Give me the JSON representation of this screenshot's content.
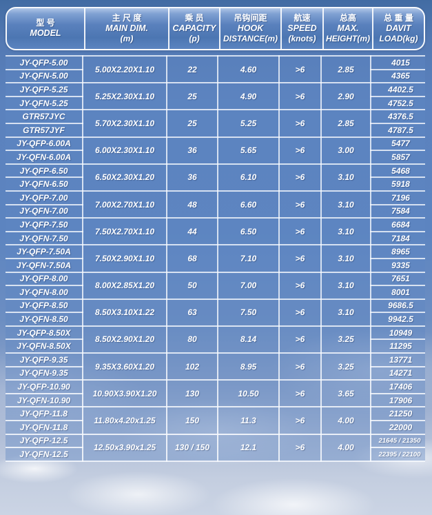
{
  "header": {
    "columns": [
      {
        "zh": "型 号",
        "en": "MODEL",
        "unit": ""
      },
      {
        "zh": "主 尺 度",
        "en": "MAIN DIM.",
        "unit": "(m)"
      },
      {
        "zh": "乘 员",
        "en": "CAPACITY",
        "unit": "(p)"
      },
      {
        "zh": "吊钩间距",
        "en": "HOOK",
        "unit": "DISTANCE(m)"
      },
      {
        "zh": "航速",
        "en": "SPEED",
        "unit": "(knots)"
      },
      {
        "zh": "总高",
        "en": "MAX.",
        "unit": "HEIGHT(m)"
      },
      {
        "zh": "总 重 量",
        "en": "DAVIT",
        "unit": "LOAD(kg)"
      }
    ]
  },
  "groups": [
    {
      "models": [
        "JY-QFP-5.00",
        "JY-QFN-5.00"
      ],
      "dim": "5.00X2.20X1.10",
      "capacity": "22",
      "hook": "4.60",
      "speed": ">6",
      "height": "2.85",
      "loads": [
        "4015",
        "4365"
      ]
    },
    {
      "models": [
        "JY-QFP-5.25",
        "JY-QFN-5.25"
      ],
      "dim": "5.25X2.30X1.10",
      "capacity": "25",
      "hook": "4.90",
      "speed": ">6",
      "height": "2.90",
      "loads": [
        "4402.5",
        "4752.5"
      ]
    },
    {
      "models": [
        "GTR57JYC",
        "GTR57JYF"
      ],
      "dim": "5.70X2.30X1.10",
      "capacity": "25",
      "hook": "5.25",
      "speed": ">6",
      "height": "2.85",
      "loads": [
        "4376.5",
        "4787.5"
      ]
    },
    {
      "models": [
        "JY-QFP-6.00A",
        "JY-QFN-6.00A"
      ],
      "dim": "6.00X2.30X1.10",
      "capacity": "36",
      "hook": "5.65",
      "speed": ">6",
      "height": "3.00",
      "loads": [
        "5477",
        "5857"
      ]
    },
    {
      "models": [
        "JY-QFP-6.50",
        "JY-QFN-6.50"
      ],
      "dim": "6.50X2.30X1.20",
      "capacity": "36",
      "hook": "6.10",
      "speed": ">6",
      "height": "3.10",
      "loads": [
        "5468",
        "5918"
      ]
    },
    {
      "models": [
        "JY-QFP-7.00",
        "JY-QFN-7.00"
      ],
      "dim": "7.00X2.70X1.10",
      "capacity": "48",
      "hook": "6.60",
      "speed": ">6",
      "height": "3.10",
      "loads": [
        "7196",
        "7584"
      ]
    },
    {
      "models": [
        "JY-QFP-7.50",
        "JY-QFN-7.50"
      ],
      "dim": "7.50X2.70X1.10",
      "capacity": "44",
      "hook": "6.50",
      "speed": ">6",
      "height": "3.10",
      "loads": [
        "6684",
        "7184"
      ]
    },
    {
      "models": [
        "JY-QFP-7.50A",
        "JY-QFN-7.50A"
      ],
      "dim": "7.50X2.90X1.10",
      "capacity": "68",
      "hook": "7.10",
      "speed": ">6",
      "height": "3.10",
      "loads": [
        "8965",
        "9335"
      ]
    },
    {
      "models": [
        "JY-QFP-8.00",
        "JY-QFN-8.00"
      ],
      "dim": "8.00X2.85X1.20",
      "capacity": "50",
      "hook": "7.00",
      "speed": ">6",
      "height": "3.10",
      "loads": [
        "7651",
        "8001"
      ]
    },
    {
      "models": [
        "JY-QFP-8.50",
        "JY-QFN-8.50"
      ],
      "dim": "8.50X3.10X1.22",
      "capacity": "63",
      "hook": "7.50",
      "speed": ">6",
      "height": "3.10",
      "loads": [
        "9686.5",
        "9942.5"
      ]
    },
    {
      "models": [
        "JY-QFP-8.50X",
        "JY-QFN-8.50X"
      ],
      "dim": "8.50X2.90X1.20",
      "capacity": "80",
      "hook": "8.14",
      "speed": ">6",
      "height": "3.25",
      "loads": [
        "10949",
        "11295"
      ]
    },
    {
      "models": [
        "JY-QFP-9.35",
        "JY-QFN-9.35"
      ],
      "dim": "9.35X3.60X1.20",
      "capacity": "102",
      "hook": "8.95",
      "speed": ">6",
      "height": "3.25",
      "loads": [
        "13771",
        "14271"
      ]
    },
    {
      "models": [
        "JY-QFP-10.90",
        "JY-QFN-10.90"
      ],
      "dim": "10.90X3.90X1.20",
      "capacity": "130",
      "hook": "10.50",
      "speed": ">6",
      "height": "3.65",
      "loads": [
        "17406",
        "17906"
      ]
    },
    {
      "models": [
        "JY-QFP-11.8",
        "JY-QFN-11.8"
      ],
      "dim": "11.80x4.20x1.25",
      "capacity": "150",
      "hook": "11.3",
      "speed": ">6",
      "height": "4.00",
      "loads": [
        "21250",
        "22000"
      ]
    },
    {
      "models": [
        "JY-QFP-12.5",
        "JY-QFN-12.5"
      ],
      "dim": "12.50x3.90x1.25",
      "capacity": "130 / 150",
      "hook": "12.1",
      "speed": ">6",
      "height": "4.00",
      "loads": [
        "21645 / 21350",
        "22395 / 22100"
      ]
    }
  ],
  "colors": {
    "cell_blue": "#5B82BF",
    "header_top": "#AFC6E6",
    "header_bottom": "#4C76B2",
    "grid_line": "#F4F8FF",
    "bg_top": "#426CA3",
    "bg_bottom": "#CBD4E4",
    "text": "#FFFFFF"
  }
}
